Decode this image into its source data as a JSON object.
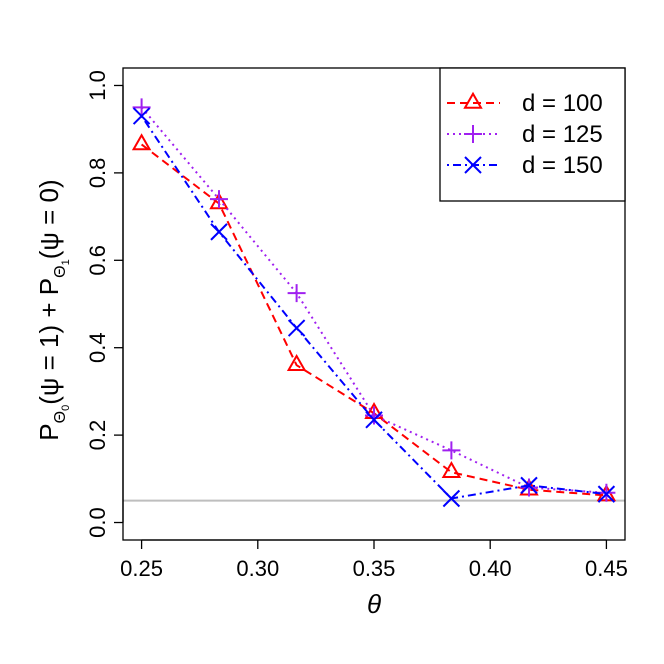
{
  "chart_data": {
    "type": "line",
    "title": "",
    "xlabel": "θ",
    "ylabel": {
      "main1": "P",
      "sub1": "Θ",
      "subsub1": "0",
      "mid": "(ψ = 1) + P",
      "sub2": "Θ",
      "subsub2": "1",
      "tail": "(ψ = 0)"
    },
    "xlim": [
      0.242,
      0.458
    ],
    "ylim": [
      -0.04,
      1.04
    ],
    "x_ticks": [
      0.25,
      0.3,
      0.35,
      0.4,
      0.45
    ],
    "x_tick_labels": [
      "0.25",
      "0.30",
      "0.35",
      "0.40",
      "0.45"
    ],
    "y_ticks": [
      0.0,
      0.2,
      0.4,
      0.6,
      0.8,
      1.0
    ],
    "y_tick_labels": [
      "0.0",
      "0.2",
      "0.4",
      "0.6",
      "0.8",
      "1.0"
    ],
    "x": [
      0.25,
      0.2833,
      0.3167,
      0.35,
      0.3833,
      0.4167,
      0.45
    ],
    "reference_line": {
      "y": 0.05,
      "color": "#bebebe"
    },
    "legend_position": "top-right",
    "series": [
      {
        "name": "d = 100",
        "marker": "triangle",
        "dash": "dashed",
        "color": "#ff0000",
        "values": [
          0.865,
          0.73,
          0.36,
          0.25,
          0.115,
          0.075,
          0.062
        ]
      },
      {
        "name": "d = 125",
        "marker": "plus",
        "dash": "dotted",
        "color": "#a020f0",
        "values": [
          0.95,
          0.74,
          0.525,
          0.245,
          0.165,
          0.08,
          0.068
        ]
      },
      {
        "name": "d = 150",
        "marker": "cross",
        "dash": "dotdash",
        "color": "#0000ff",
        "values": [
          0.93,
          0.665,
          0.445,
          0.235,
          0.055,
          0.085,
          0.065
        ]
      }
    ]
  }
}
